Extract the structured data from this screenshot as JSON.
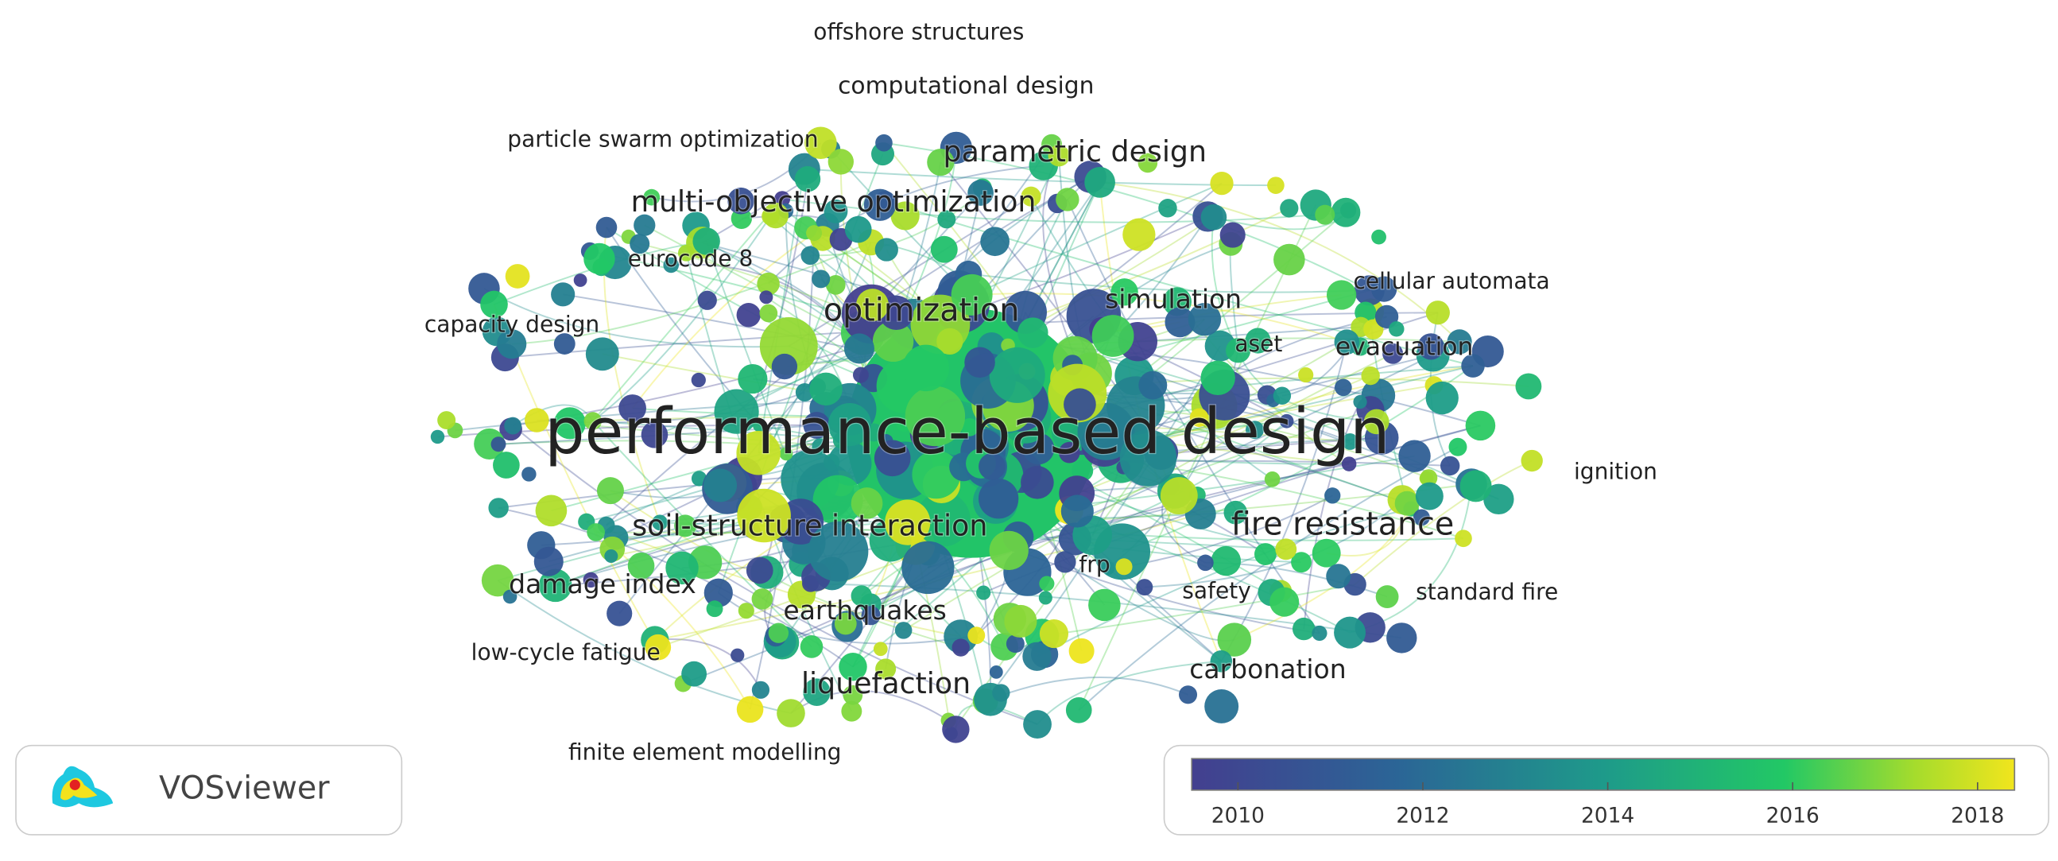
{
  "labels": [
    "offshore structures",
    "computational design",
    "particle swarm optimization",
    "parametric design",
    "multi-objective optimization",
    "eurocode 8",
    "cellular automata",
    "simulation",
    "optimization",
    "capacity design",
    "aset",
    "evacuation",
    "performance-based design",
    "ignition",
    "soil-structure interaction",
    "fire resistance",
    "damage index",
    "frp",
    "safety",
    "standard fire",
    "earthquakes",
    "low-cycle fatigue",
    "carbonation",
    "liquefaction",
    "finite element modelling"
  ],
  "logo": "VOSviewer",
  "colorbar": {
    "range": [
      2009.5,
      2018.4
    ],
    "ticks": [
      2010,
      2012,
      2014,
      2016,
      2018
    ]
  }
}
